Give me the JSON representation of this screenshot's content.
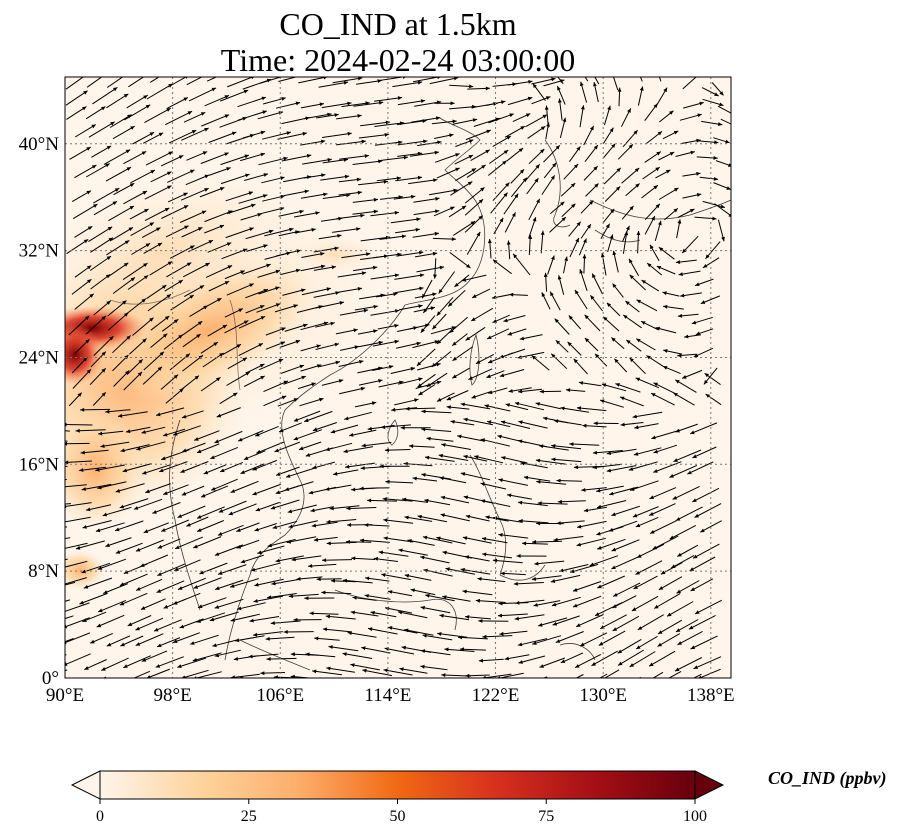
{
  "title": {
    "line1": "CO_IND at 1.5km",
    "line2": "Time: 2024-02-24 03:00:00"
  },
  "map": {
    "projection": "PlateCarree",
    "lon_range": [
      90,
      139.5
    ],
    "lat_range": [
      0,
      45
    ],
    "background_color": "#fff5eb",
    "gridline_style": "dotted",
    "lon_ticks": [
      {
        "value": 90,
        "label": "90°E"
      },
      {
        "value": 98,
        "label": "98°E"
      },
      {
        "value": 106,
        "label": "106°E"
      },
      {
        "value": 114,
        "label": "114°E"
      },
      {
        "value": 122,
        "label": "122°E"
      },
      {
        "value": 130,
        "label": "130°E"
      },
      {
        "value": 138,
        "label": "138°E"
      }
    ],
    "lat_ticks": [
      {
        "value": 0,
        "label": "0°"
      },
      {
        "value": 8,
        "label": "8°N"
      },
      {
        "value": 16,
        "label": "16°N"
      },
      {
        "value": 24,
        "label": "24°N"
      },
      {
        "value": 32,
        "label": "32°N"
      },
      {
        "value": 40,
        "label": "40°N"
      }
    ],
    "field_overlay": "wind vectors (quiver arrows)"
  },
  "colorbar": {
    "label": "CO_IND (ppbv)",
    "min": 0,
    "max": 100,
    "extend": "both",
    "colormap": "OrRd",
    "colors": [
      "#fff5eb",
      "#fdd49e",
      "#fdae6b",
      "#f16913",
      "#d7301f",
      "#a50f15",
      "#67000d"
    ],
    "ticks": [
      {
        "value": 0,
        "label": "0"
      },
      {
        "value": 25,
        "label": "25"
      },
      {
        "value": 50,
        "label": "50"
      },
      {
        "value": 75,
        "label": "75"
      },
      {
        "value": 100,
        "label": "100"
      }
    ]
  }
}
